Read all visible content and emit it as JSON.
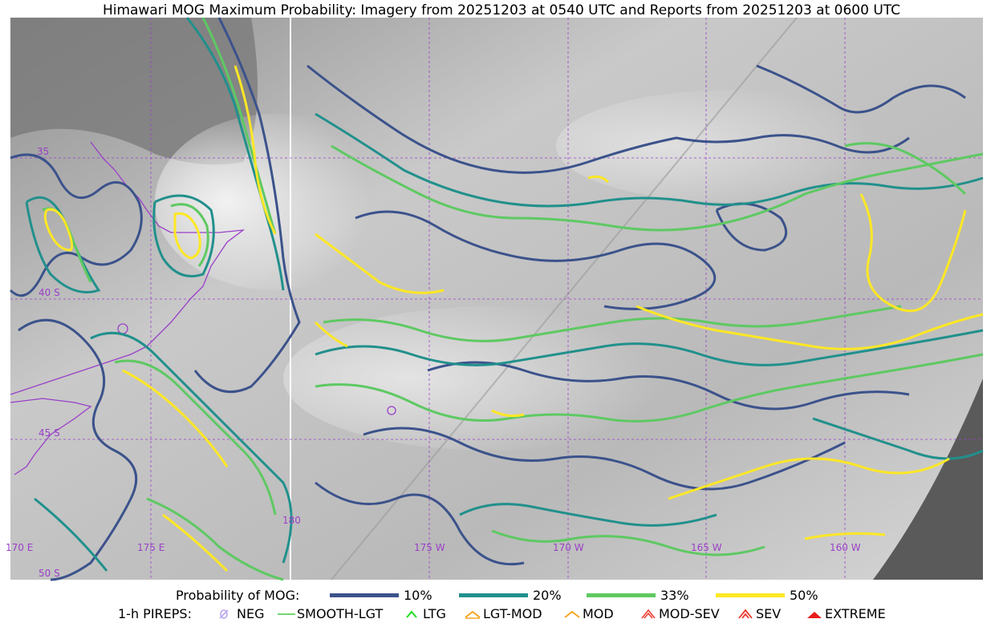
{
  "title": "Himawari MOG Maximum Probability: Imagery from 20251203 at 0540 UTC and Reports from 20251203 at 0600 UTC",
  "grid_labels": {
    "lat_35": "35",
    "lat_40": "40 S",
    "lat_45": "45 S",
    "lat_50": "50 S",
    "lon_170e": "170 E",
    "lon_175e": "175 E",
    "lon_180": "180",
    "lon_175w": "175 W",
    "lon_170w": "170 W",
    "lon_165w": "165 W",
    "lon_160w": "160 W"
  },
  "prob_legend": {
    "label": "Probability of MOG:",
    "items": [
      {
        "label": "10%",
        "color": "#3b528b"
      },
      {
        "label": "20%",
        "color": "#21908c"
      },
      {
        "label": "33%",
        "color": "#5ec962"
      },
      {
        "label": "50%",
        "color": "#fde725"
      }
    ]
  },
  "pirep_legend": {
    "label": "1-h PIREPS:",
    "items": [
      {
        "label": "NEG",
        "icon": "neg-icon",
        "color": "#b4a0f0"
      },
      {
        "label": "SMOOTH-LGT",
        "icon": "smooth-lgt-icon",
        "color": "#44cc44"
      },
      {
        "label": "LTG",
        "icon": "ltg-icon",
        "color": "#22dd22"
      },
      {
        "label": "LGT-MOD",
        "icon": "lgt-mod-icon",
        "color": "#f5a623"
      },
      {
        "label": "MOD",
        "icon": "mod-icon",
        "color": "#f5a623"
      },
      {
        "label": "MOD-SEV",
        "icon": "mod-sev-icon",
        "color": "#e8382c"
      },
      {
        "label": "SEV",
        "icon": "sev-icon",
        "color": "#e8382c"
      },
      {
        "label": "EXTREME",
        "icon": "extreme-icon",
        "color": "#e81c1c"
      }
    ]
  }
}
